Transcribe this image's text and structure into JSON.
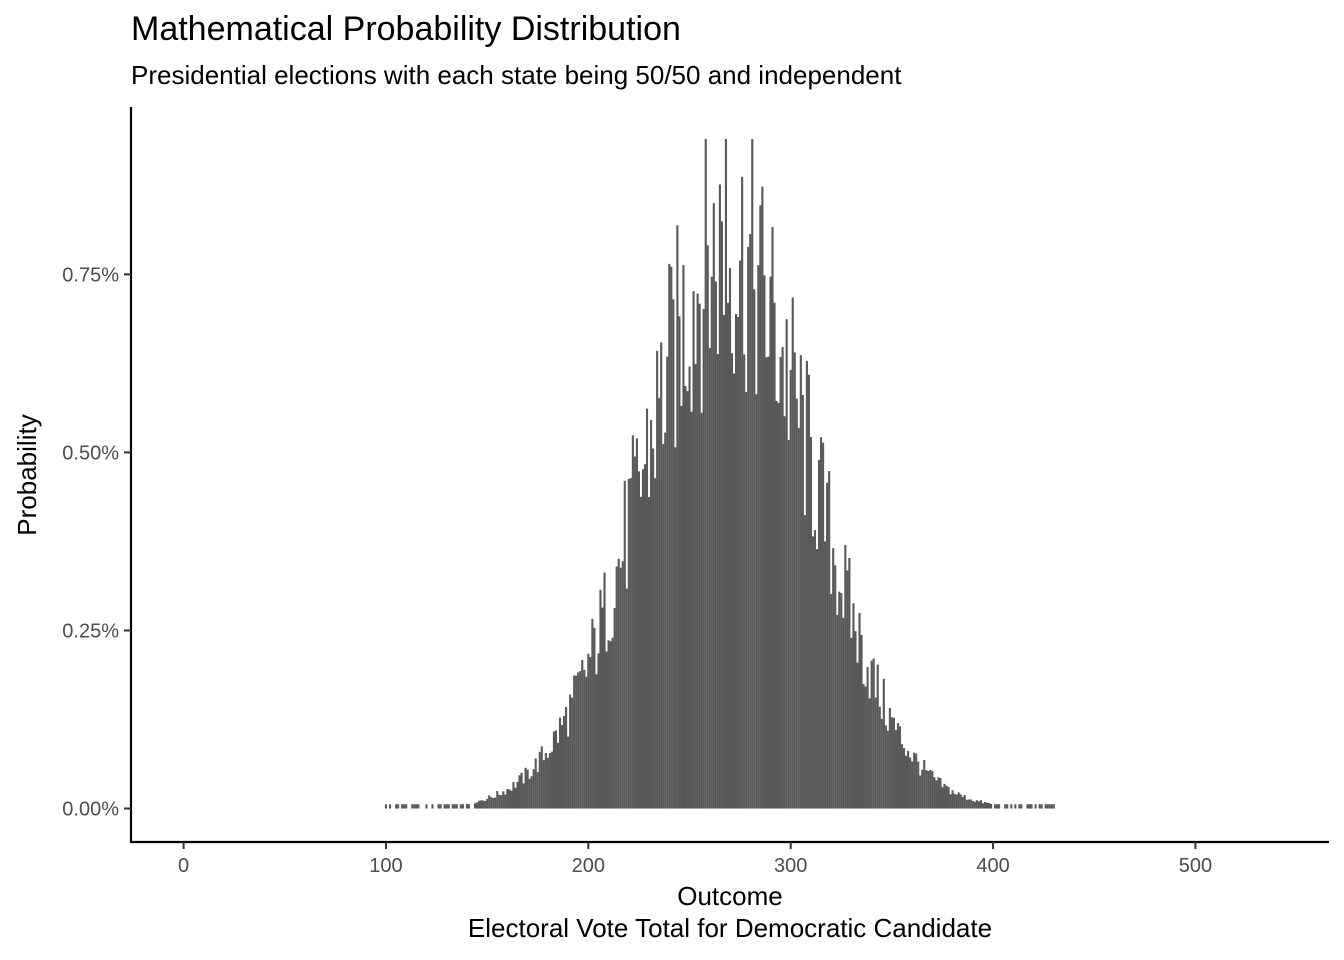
{
  "chart_data": {
    "type": "bar",
    "title": "Mathematical Probability Distribution",
    "subtitle": "Presidential elections with each state being 50/50 and independent",
    "xlabel": "Outcome",
    "xlabel_sub": "Electoral Vote Total for Democratic Candidate",
    "ylabel": "Probability",
    "xlim": [
      -26,
      566
    ],
    "ylim": [
      -0.00047,
      0.00985
    ],
    "x_ticks": [
      0,
      100,
      200,
      300,
      400,
      500
    ],
    "x_tick_labels": [
      "0",
      "100",
      "200",
      "300",
      "400",
      "500"
    ],
    "y_ticks": [
      0,
      0.0025,
      0.005,
      0.0075
    ],
    "y_tick_labels": [
      "0.00%",
      "0.25%",
      "0.50%",
      "0.75%"
    ],
    "grid": false,
    "bar_color": "#595959",
    "distribution": {
      "x_min": 100,
      "x_max": 430,
      "mean": 269,
      "sd": 42,
      "peak_outcome": 268,
      "peak_probability": 0.0094
    }
  }
}
